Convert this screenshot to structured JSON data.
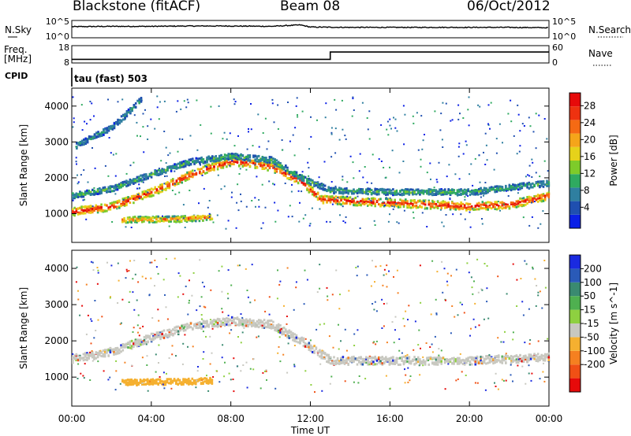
{
  "header": {
    "station": "Blackstone (fitACF)",
    "beam": "Beam 08",
    "date": "06/Oct/2012"
  },
  "chart_data": [
    {
      "type": "line",
      "name": "noise-panel",
      "left_label": "N.Sky",
      "right_label": "N.Search",
      "left_ticks": [
        "10^5",
        "10^0"
      ],
      "right_ticks": [
        "10^5",
        "10^0"
      ],
      "description_x": "hours UT 0-24",
      "series": [
        {
          "name": "N.Sky",
          "x": [
            0,
            2,
            4,
            6,
            8,
            10,
            11.5,
            12,
            14,
            16,
            18,
            20,
            22,
            24
          ],
          "y": [
            3.2,
            3.3,
            3.3,
            3.4,
            3.4,
            3.3,
            3.7,
            3.1,
            3.0,
            3.0,
            3.0,
            3.0,
            3.0,
            2.9
          ]
        }
      ]
    },
    {
      "type": "line",
      "name": "freq-nave-panel",
      "left_label_1": "Freq.",
      "left_label_2": "[MHz]",
      "right_label": "Nave",
      "left_ticks": [
        "18",
        "8"
      ],
      "right_ticks": [
        "60",
        "0"
      ],
      "ylim_left": [
        8,
        18
      ],
      "series": [
        {
          "name": "Freq.",
          "x": [
            0,
            13.0,
            13.0,
            24
          ],
          "y": [
            10.1,
            10.1,
            14.3,
            14.3
          ]
        }
      ]
    },
    {
      "type": "table",
      "name": "cpid-panel",
      "label": "CPID",
      "value": "tau (fast) 503"
    },
    {
      "type": "heatmap",
      "name": "power-panel",
      "ylabel": "Slant Range [km]",
      "yticks": [
        1000,
        2000,
        3000,
        4000
      ],
      "ylim": [
        200,
        4500
      ],
      "xlim": [
        0,
        24
      ],
      "colorbar_label": "Power [dB]",
      "colorbar_ticks": [
        "4",
        "8",
        "12",
        "16",
        "20",
        "24",
        "28"
      ],
      "colors": [
        "#0a1fe6",
        "#1f4fb0",
        "#2f7fa0",
        "#2faa60",
        "#7ecb2a",
        "#e6d21a",
        "#f5a51a",
        "#f56a14",
        "#ee3210",
        "#e60a0a"
      ],
      "echo_bands": [
        {
          "points": [
            [
              0,
              1050
            ],
            [
              2,
              1200
            ],
            [
              4,
              1600
            ],
            [
              6,
              2100
            ],
            [
              7,
              2300
            ],
            [
              8,
              2450
            ],
            [
              9,
              2400
            ],
            [
              10,
              2300
            ],
            [
              11.5,
              1900
            ],
            [
              12.5,
              1400
            ],
            [
              14,
              1350
            ],
            [
              16,
              1300
            ],
            [
              18,
              1250
            ],
            [
              20,
              1200
            ],
            [
              22,
              1250
            ],
            [
              24,
              1500
            ]
          ],
          "level": 28
        },
        {
          "points": [
            [
              0,
              1500
            ],
            [
              2,
              1700
            ],
            [
              4,
              2100
            ],
            [
              6,
              2450
            ],
            [
              8,
              2600
            ],
            [
              10,
              2500
            ],
            [
              11.5,
              2000
            ],
            [
              13,
              1650
            ],
            [
              16,
              1600
            ],
            [
              20,
              1600
            ],
            [
              24,
              1850
            ]
          ],
          "level": 10
        },
        {
          "points": [
            [
              2.5,
              830
            ],
            [
              4,
              840
            ],
            [
              5.5,
              850
            ],
            [
              7,
              900
            ]
          ],
          "level": 22
        },
        {
          "points": [
            [
              0.2,
              2900
            ],
            [
              2,
              3400
            ],
            [
              3.5,
              4200
            ]
          ],
          "level": 8
        }
      ]
    },
    {
      "type": "heatmap",
      "name": "velocity-panel",
      "ylabel": "Slant Range [km]",
      "yticks": [
        1000,
        2000,
        3000,
        4000
      ],
      "ylim": [
        200,
        4500
      ],
      "xlim": [
        0,
        24
      ],
      "xticks": [
        "00:00",
        "04:00",
        "08:00",
        "12:00",
        "16:00",
        "20:00",
        "00:00"
      ],
      "xlabel": "Time UT",
      "colorbar_label": "Velocity [m s^-1]",
      "colorbar_ticks": [
        "200",
        "100",
        "50",
        "15",
        "-15",
        "-50",
        "-100",
        "-200"
      ],
      "colors": [
        "#1a2ae0",
        "#2a5ab8",
        "#3a8a70",
        "#4fb050",
        "#8ed040",
        "#c8c8c0",
        "#f5b030",
        "#f58020",
        "#f05015",
        "#e60a0a"
      ],
      "echo_bands": [
        {
          "points": [
            [
              0,
              1500
            ],
            [
              2,
              1700
            ],
            [
              4,
              2100
            ],
            [
              6,
              2400
            ],
            [
              8,
              2550
            ],
            [
              10,
              2450
            ],
            [
              11.5,
              2000
            ],
            [
              13,
              1450
            ],
            [
              16,
              1450
            ],
            [
              20,
              1450
            ],
            [
              24,
              1550
            ]
          ],
          "velocity": 0
        },
        {
          "points": [
            [
              2.5,
              850
            ],
            [
              4,
              860
            ],
            [
              5.5,
              870
            ],
            [
              7,
              900
            ]
          ],
          "velocity": -40
        }
      ]
    }
  ]
}
